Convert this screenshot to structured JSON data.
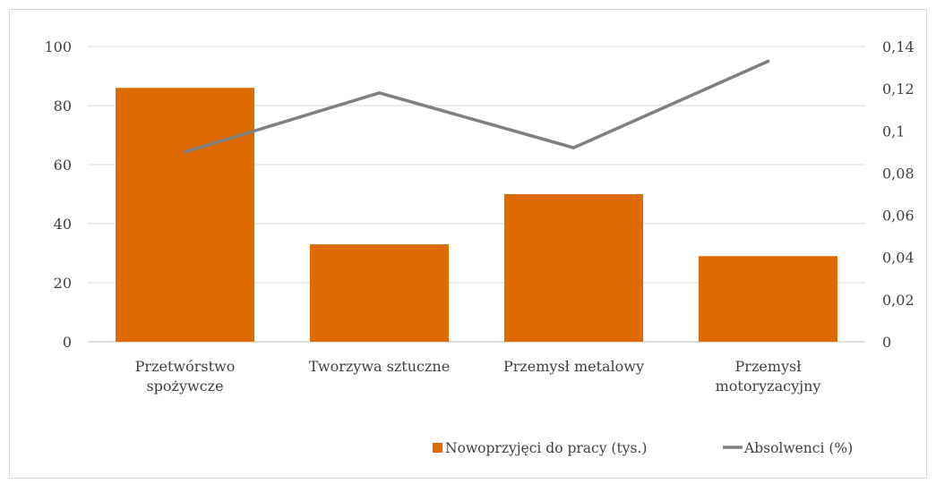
{
  "chart_data": {
    "type": "bar",
    "categories": [
      [
        "Przetwórstwo",
        "spożywcze"
      ],
      [
        "Tworzywa sztuczne"
      ],
      [
        "Przemysł metalowy"
      ],
      [
        "Przemysł",
        "motoryzacyjny"
      ]
    ],
    "series": [
      {
        "name": "Nowoprzyjęci do pracy (tys.)",
        "type": "bar",
        "axis": "left",
        "color": "#dd6b00",
        "values": [
          86,
          33,
          50,
          29
        ]
      },
      {
        "name": "Absolwenci (%)",
        "type": "line",
        "axis": "right",
        "color": "#7f7f7f",
        "values": [
          0.09,
          0.118,
          0.092,
          0.133
        ]
      }
    ],
    "y_left": {
      "min": 0,
      "max": 100,
      "ticks": [
        0,
        20,
        40,
        60,
        80,
        100
      ],
      "tick_labels": [
        "0",
        "20",
        "40",
        "60",
        "80",
        "100"
      ]
    },
    "y_right": {
      "min": 0,
      "max": 0.14,
      "ticks": [
        0,
        0.02,
        0.04,
        0.06,
        0.08,
        0.1,
        0.12,
        0.14
      ],
      "tick_labels": [
        "0",
        "0,02",
        "0,04",
        "0,06",
        "0,08",
        "0,1",
        "0,12",
        "0,14"
      ]
    },
    "grid": true,
    "legend_position": "bottom-right"
  }
}
